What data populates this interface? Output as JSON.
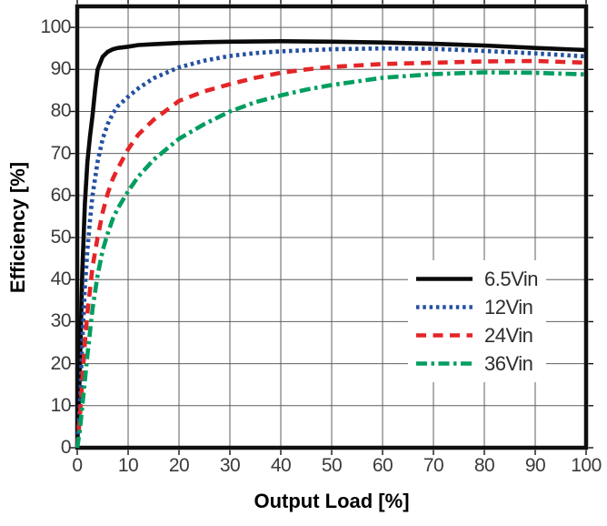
{
  "chart_data": {
    "type": "line",
    "title": "",
    "xlabel": "Output Load [%]",
    "ylabel": "Efficiency [%]",
    "xlim": [
      0,
      100
    ],
    "ylim": [
      0,
      105
    ],
    "grid": true,
    "legend_position": "inset lower right",
    "x_ticks": [
      0,
      10,
      20,
      30,
      40,
      50,
      60,
      70,
      80,
      90,
      100
    ],
    "y_ticks": [
      0,
      10,
      20,
      30,
      40,
      50,
      60,
      70,
      80,
      90,
      100
    ],
    "frame_color": "#101010",
    "grid_color": "#5f5f5f",
    "tick_text_color": "#3a3a3a",
    "series": [
      {
        "name": "6.5Vin",
        "color": "#0a0a0a",
        "dash": "",
        "line_style": "solid",
        "points": [
          [
            0,
            0
          ],
          [
            0.5,
            18
          ],
          [
            1,
            42
          ],
          [
            1.5,
            58
          ],
          [
            2,
            68
          ],
          [
            2.5,
            74
          ],
          [
            3,
            79
          ],
          [
            3.5,
            85
          ],
          [
            4,
            90
          ],
          [
            5,
            93
          ],
          [
            6,
            94.2
          ],
          [
            7,
            94.8
          ],
          [
            8,
            95.1
          ],
          [
            10,
            95.4
          ],
          [
            12,
            95.8
          ],
          [
            15,
            96.0
          ],
          [
            20,
            96.3
          ],
          [
            25,
            96.5
          ],
          [
            30,
            96.6
          ],
          [
            40,
            96.7
          ],
          [
            50,
            96.6
          ],
          [
            60,
            96.4
          ],
          [
            70,
            96.1
          ],
          [
            80,
            95.7
          ],
          [
            90,
            95.1
          ],
          [
            100,
            94.6
          ]
        ]
      },
      {
        "name": "12Vin",
        "color": "#2450a0",
        "dash": "3.5 3.8",
        "line_style": "dotted",
        "points": [
          [
            0,
            0
          ],
          [
            0.5,
            10
          ],
          [
            1,
            25
          ],
          [
            1.5,
            38
          ],
          [
            2,
            47
          ],
          [
            2.5,
            54
          ],
          [
            3,
            60
          ],
          [
            4,
            68
          ],
          [
            5,
            73.5
          ],
          [
            6,
            77
          ],
          [
            7,
            79.5
          ],
          [
            8,
            81.3
          ],
          [
            10,
            83.5
          ],
          [
            12,
            85.5
          ],
          [
            15,
            87.9
          ],
          [
            20,
            90.5
          ],
          [
            25,
            92.1
          ],
          [
            30,
            93.2
          ],
          [
            35,
            93.9
          ],
          [
            40,
            94.3
          ],
          [
            50,
            94.8
          ],
          [
            60,
            95.0
          ],
          [
            70,
            94.9
          ],
          [
            80,
            94.4
          ],
          [
            90,
            93.8
          ],
          [
            100,
            93.1
          ]
        ]
      },
      {
        "name": "24Vin",
        "color": "#e42528",
        "dash": "11 7.5",
        "line_style": "dashed",
        "points": [
          [
            0,
            0
          ],
          [
            0.5,
            7
          ],
          [
            1,
            16
          ],
          [
            1.5,
            25
          ],
          [
            2,
            32
          ],
          [
            3,
            43
          ],
          [
            4,
            50
          ],
          [
            5,
            56
          ],
          [
            6,
            60.5
          ],
          [
            7,
            64
          ],
          [
            8,
            66.5
          ],
          [
            10,
            71
          ],
          [
            12,
            74.5
          ],
          [
            15,
            78
          ],
          [
            20,
            82.5
          ],
          [
            25,
            84.8
          ],
          [
            30,
            86.5
          ],
          [
            35,
            88
          ],
          [
            40,
            89.2
          ],
          [
            45,
            90
          ],
          [
            50,
            90.6
          ],
          [
            60,
            91.3
          ],
          [
            70,
            91.6
          ],
          [
            80,
            91.9
          ],
          [
            90,
            92
          ],
          [
            100,
            91.6
          ]
        ]
      },
      {
        "name": "36Vin",
        "color": "#009e60",
        "dash": "12 4.5 3.5 4.5",
        "line_style": "dash-dot",
        "points": [
          [
            0,
            0
          ],
          [
            0.5,
            4
          ],
          [
            1,
            10
          ],
          [
            1.5,
            16
          ],
          [
            2,
            22
          ],
          [
            3,
            33
          ],
          [
            4,
            41
          ],
          [
            5,
            47
          ],
          [
            6,
            51
          ],
          [
            7,
            54.5
          ],
          [
            8,
            57
          ],
          [
            10,
            61
          ],
          [
            12,
            64.5
          ],
          [
            15,
            68.5
          ],
          [
            20,
            73.5
          ],
          [
            25,
            77
          ],
          [
            30,
            80
          ],
          [
            35,
            82.2
          ],
          [
            40,
            83.8
          ],
          [
            45,
            85.2
          ],
          [
            50,
            86.3
          ],
          [
            60,
            88
          ],
          [
            70,
            88.9
          ],
          [
            80,
            89.3
          ],
          [
            90,
            89.2
          ],
          [
            100,
            88.8
          ]
        ]
      }
    ]
  }
}
